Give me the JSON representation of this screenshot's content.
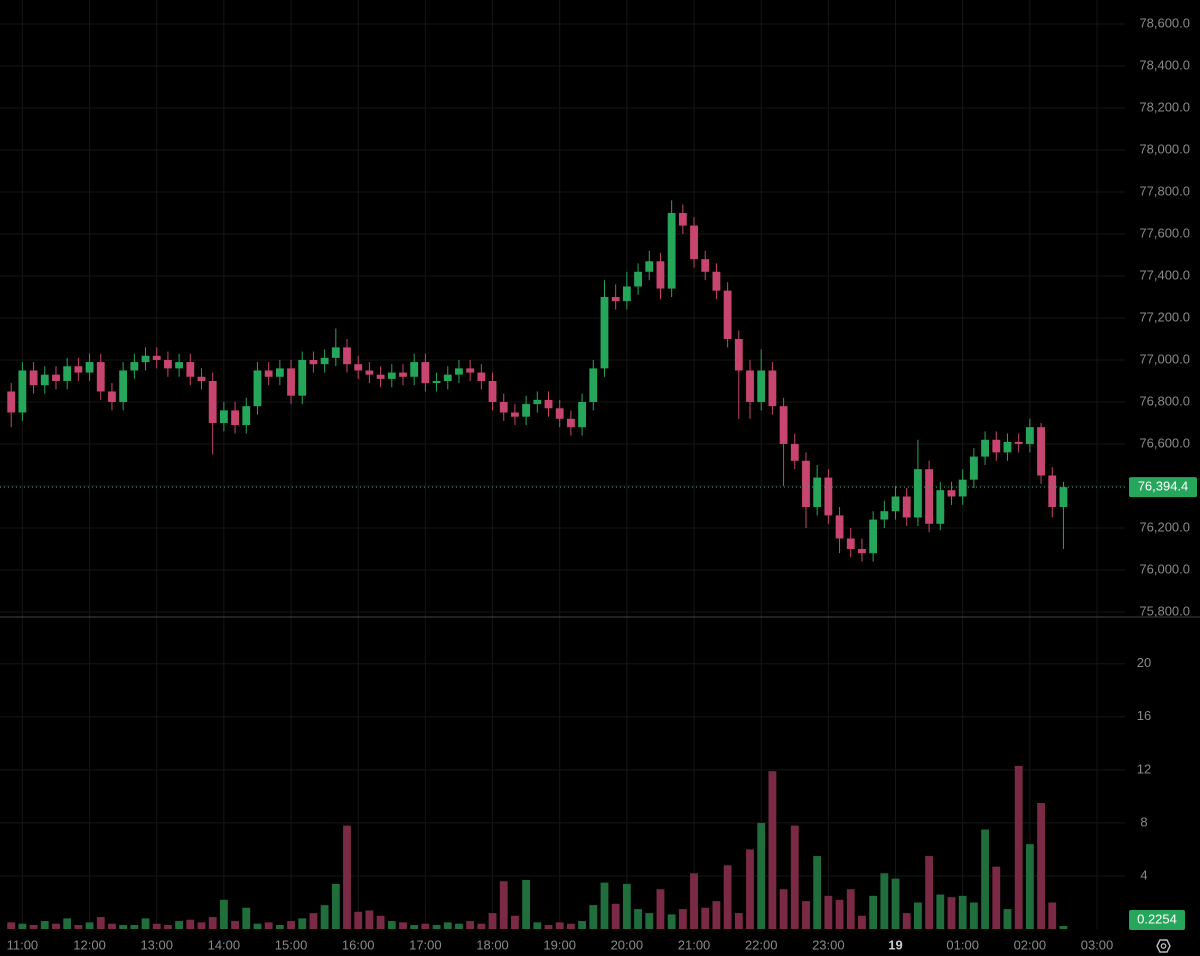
{
  "chart_data": {
    "type": "candlestick",
    "x": [
      -10,
      0,
      10,
      20,
      30,
      40,
      50,
      60,
      70,
      80,
      90,
      100,
      110,
      120,
      130,
      140,
      150,
      160,
      170,
      180,
      190,
      200,
      210,
      220,
      230,
      240,
      250,
      260,
      270,
      280,
      290,
      300,
      310,
      320,
      330,
      340,
      350,
      360,
      370,
      380,
      390,
      400,
      410,
      420,
      430,
      440,
      450,
      460,
      470,
      480,
      490,
      500,
      510,
      520,
      530,
      540,
      550,
      560,
      570,
      580,
      590,
      600,
      610,
      620,
      630,
      640,
      650,
      660,
      670,
      680,
      690,
      700,
      710,
      720,
      730,
      740,
      750,
      760,
      770,
      780,
      790,
      800,
      810,
      820,
      830,
      840,
      850,
      860,
      870,
      880,
      890,
      900,
      910,
      920,
      930
    ],
    "open": [
      76850,
      76750,
      76950,
      76880,
      76930,
      76900,
      76970,
      76940,
      76990,
      76850,
      76800,
      76950,
      76990,
      77020,
      77000,
      76960,
      76990,
      76920,
      76900,
      76700,
      76760,
      76690,
      76780,
      76950,
      76920,
      76960,
      76830,
      77000,
      76980,
      77010,
      77060,
      76980,
      76950,
      76930,
      76910,
      76940,
      76920,
      76990,
      76890,
      76900,
      76930,
      76960,
      76940,
      76900,
      76800,
      76750,
      76730,
      76790,
      76810,
      76770,
      76720,
      76680,
      76800,
      76960,
      77300,
      77280,
      77350,
      77420,
      77470,
      77340,
      77700,
      77640,
      77480,
      77420,
      77330,
      77100,
      76950,
      76800,
      76950,
      76780,
      76600,
      76520,
      76300,
      76440,
      76260,
      76150,
      76100,
      76080,
      76240,
      76280,
      76350,
      76250,
      76480,
      76220,
      76380,
      76350,
      76430,
      76540,
      76620,
      76560,
      76610,
      76600,
      76680,
      76450,
      76300
    ],
    "high": [
      76890,
      76990,
      76990,
      76970,
      76970,
      77010,
      77010,
      77030,
      77030,
      76890,
      76990,
      77030,
      77060,
      77060,
      77040,
      77030,
      77030,
      76960,
      76940,
      76800,
      76800,
      76820,
      76990,
      76990,
      77000,
      77000,
      77040,
      77040,
      77050,
      77150,
      77100,
      77020,
      76990,
      76970,
      76980,
      76980,
      77030,
      77030,
      76940,
      76970,
      77000,
      77000,
      76980,
      76940,
      76840,
      76790,
      76830,
      76850,
      76850,
      76810,
      76760,
      76840,
      77000,
      77380,
      77360,
      77420,
      77460,
      77520,
      77510,
      77760,
      77740,
      77680,
      77520,
      77460,
      77370,
      77140,
      77000,
      77050,
      76990,
      76820,
      76650,
      76560,
      76500,
      76480,
      76300,
      76200,
      76150,
      76280,
      76330,
      76400,
      76390,
      76620,
      76520,
      76420,
      76420,
      76480,
      76580,
      76660,
      76660,
      76650,
      76650,
      76720,
      76700,
      76490,
      76420
    ],
    "low": [
      76680,
      76710,
      76840,
      76840,
      76860,
      76860,
      76900,
      76900,
      76810,
      76760,
      76760,
      76910,
      76950,
      76960,
      76920,
      76920,
      76880,
      76860,
      76550,
      76660,
      76650,
      76650,
      76740,
      76880,
      76880,
      76790,
      76790,
      76940,
      76940,
      76970,
      76940,
      76910,
      76890,
      76870,
      76870,
      76880,
      76880,
      76850,
      76850,
      76860,
      76890,
      76900,
      76860,
      76760,
      76710,
      76690,
      76690,
      76750,
      76730,
      76680,
      76640,
      76640,
      76760,
      76920,
      77240,
      77240,
      77310,
      77380,
      77290,
      77300,
      77600,
      77440,
      77380,
      77290,
      77060,
      76720,
      76720,
      76760,
      76740,
      76400,
      76480,
      76200,
      76260,
      76220,
      76080,
      76060,
      76040,
      76040,
      76200,
      76240,
      76210,
      76210,
      76180,
      76190,
      76310,
      76310,
      76390,
      76500,
      76520,
      76520,
      76560,
      76560,
      76410,
      76250,
      76100
    ],
    "close": [
      76750,
      76950,
      76880,
      76930,
      76900,
      76970,
      76940,
      76990,
      76850,
      76800,
      76950,
      76990,
      77020,
      77000,
      76960,
      76990,
      76920,
      76900,
      76700,
      76760,
      76690,
      76780,
      76950,
      76920,
      76960,
      76830,
      77000,
      76980,
      77010,
      77060,
      76980,
      76950,
      76930,
      76910,
      76940,
      76920,
      76990,
      76890,
      76900,
      76930,
      76960,
      76940,
      76900,
      76800,
      76750,
      76730,
      76790,
      76810,
      76770,
      76720,
      76680,
      76800,
      76960,
      77300,
      77280,
      77350,
      77420,
      77470,
      77340,
      77700,
      77640,
      77480,
      77420,
      77330,
      77100,
      76950,
      76800,
      76950,
      76780,
      76600,
      76520,
      76300,
      76440,
      76260,
      76150,
      76100,
      76080,
      76240,
      76280,
      76350,
      76250,
      76480,
      76220,
      76380,
      76350,
      76430,
      76540,
      76620,
      76560,
      76610,
      76600,
      76680,
      76450,
      76300,
      76394.4
    ],
    "volume": [
      0.5,
      0.4,
      0.3,
      0.6,
      0.4,
      0.8,
      0.3,
      0.5,
      0.9,
      0.4,
      0.3,
      0.3,
      0.8,
      0.4,
      0.3,
      0.6,
      0.7,
      0.5,
      0.9,
      2.2,
      0.6,
      1.6,
      0.4,
      0.5,
      0.3,
      0.6,
      0.8,
      1.2,
      1.8,
      3.4,
      7.8,
      1.3,
      1.4,
      1.0,
      0.6,
      0.5,
      0.3,
      0.4,
      0.3,
      0.5,
      0.4,
      0.6,
      0.4,
      1.2,
      3.6,
      1.0,
      3.7,
      0.5,
      0.3,
      0.5,
      0.4,
      0.6,
      1.8,
      3.5,
      1.9,
      3.4,
      1.5,
      1.2,
      3.0,
      1.1,
      1.5,
      4.2,
      1.6,
      2.1,
      4.8,
      1.2,
      6.0,
      8.0,
      11.9,
      3.0,
      7.8,
      2.1,
      5.5,
      2.5,
      2.2,
      3.0,
      1.0,
      2.5,
      4.2,
      3.8,
      1.2,
      2.0,
      5.5,
      2.6,
      2.4,
      2.5,
      2.0,
      7.5,
      4.7,
      1.5,
      12.3,
      6.4,
      9.5,
      2.0,
      0.2254
    ],
    "up_color": "#26a65b",
    "down_color": "#c8456f",
    "volume_up_color": "#1f6e3c",
    "volume_down_color": "#7b2a45",
    "xlim": [
      -20,
      985
    ],
    "xticks": [
      {
        "value": 0,
        "label": "11:00"
      },
      {
        "value": 60,
        "label": "12:00"
      },
      {
        "value": 120,
        "label": "13:00"
      },
      {
        "value": 180,
        "label": "14:00"
      },
      {
        "value": 240,
        "label": "15:00"
      },
      {
        "value": 300,
        "label": "16:00"
      },
      {
        "value": 360,
        "label": "17:00"
      },
      {
        "value": 420,
        "label": "18:00"
      },
      {
        "value": 480,
        "label": "19:00"
      },
      {
        "value": 540,
        "label": "20:00"
      },
      {
        "value": 600,
        "label": "21:00"
      },
      {
        "value": 660,
        "label": "22:00"
      },
      {
        "value": 720,
        "label": "23:00"
      },
      {
        "value": 780,
        "label": "19"
      },
      {
        "value": 840,
        "label": "01:00"
      },
      {
        "value": 900,
        "label": "02:00"
      },
      {
        "value": 960,
        "label": "03:00"
      }
    ],
    "ylim": [
      75800,
      78714
    ],
    "yticks": [
      {
        "value": 75800,
        "label": "75,800.0"
      },
      {
        "value": 76000,
        "label": "76,000.0"
      },
      {
        "value": 76200,
        "label": "76,200.0"
      },
      {
        "value": 76400,
        "label": "76,400.0"
      },
      {
        "value": 76600,
        "label": "76,600.0"
      },
      {
        "value": 76800,
        "label": "76,800.0"
      },
      {
        "value": 77000,
        "label": "77,000.0"
      },
      {
        "value": 77200,
        "label": "77,200.0"
      },
      {
        "value": 77400,
        "label": "77,400.0"
      },
      {
        "value": 77600,
        "label": "77,600.0"
      },
      {
        "value": 77800,
        "label": "77,800.0"
      },
      {
        "value": 78000,
        "label": "78,000.0"
      },
      {
        "value": 78200,
        "label": "78,200.0"
      },
      {
        "value": 78400,
        "label": "78,400.0"
      },
      {
        "value": 78600,
        "label": "78,600.0"
      }
    ],
    "volume_ylim": [
      0,
      23.3
    ],
    "volume_yticks": [
      4,
      8,
      12,
      16,
      20
    ],
    "last_price": {
      "value": 76394.4,
      "label": "76,394.4"
    },
    "last_volume": {
      "value": 0.2254,
      "label": "0.2254"
    },
    "grid": true
  }
}
